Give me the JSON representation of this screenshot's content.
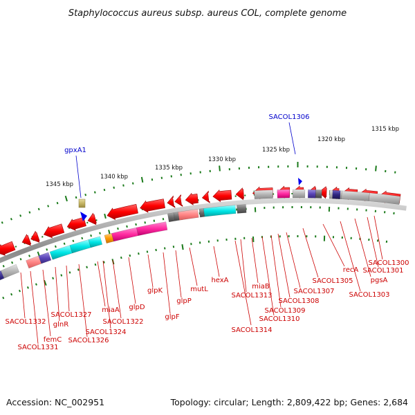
{
  "title": "Staphylococcus aureus subsp. aureus COL, complete genome",
  "footer": {
    "accession": "Accession: NC_002951",
    "summary": "Topology: circular; Length: 2,809,422 bp; Genes: 2,684"
  },
  "colors": {
    "gene_red": "#ff0000",
    "feature_blue": "#0000ee",
    "backbone": "#888888",
    "tick_green": "#1a7a1a",
    "label_red": "#cc0000",
    "label_blue": "#0000cc"
  },
  "scale_labels": [
    "1345 kbp",
    "1340 kbp",
    "1335 kbp",
    "1330 kbp",
    "1325 kbp",
    "1320 kbp",
    "1315 kbp"
  ],
  "top_labels": [
    "gpxA1",
    "SACOL1306"
  ],
  "gene_labels": [
    "SACOL1332",
    "SACOL1331",
    "femC",
    "glnR",
    "SACOL1327",
    "SACOL1326",
    "miaA",
    "SACOL1324",
    "SACOL1322",
    "glpD",
    "glpK",
    "glpF",
    "glpP",
    "mutL",
    "hexA",
    "SACOL1314",
    "SACOL1313",
    "miaB",
    "SACOL1310",
    "SACOL1309",
    "SACOL1308",
    "SACOL1307",
    "SACOL1305",
    "recA",
    "SACOL1303",
    "pgsA",
    "SACOL1301",
    "SACOL1300"
  ]
}
